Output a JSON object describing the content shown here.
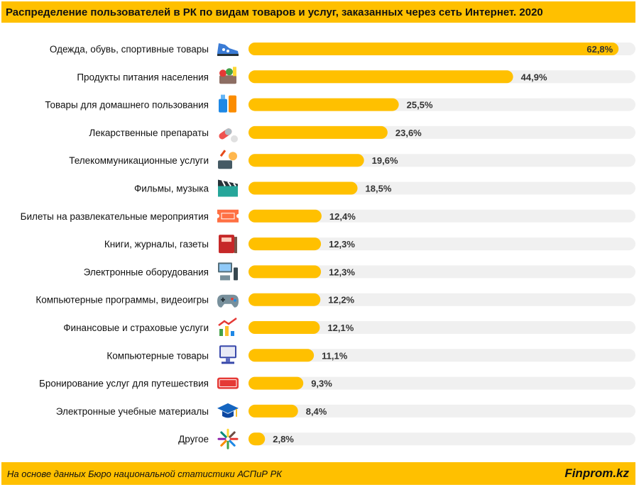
{
  "title": "Распределение пользователей в РК по видам товаров и услуг, заказанных через сеть Интернет. 2020",
  "footer": {
    "source": "На основе данных  Бюро национальной  статистики АСПиР РК",
    "brand": "Finprom.kz"
  },
  "colors": {
    "accent": "#ffc000",
    "track": "#f0f0f0"
  },
  "chart_data": {
    "type": "bar",
    "orientation": "horizontal",
    "xlim": [
      0,
      100
    ],
    "grid": false,
    "categories": [
      "Одежда, обувь, спортивные товары",
      "Продукты питания населения",
      "Товары для домашнего пользования",
      "Лекарственные препараты",
      "Телекоммуникационные услуги",
      "Фильмы, музыка",
      "Билеты на развлекательные мероприятия",
      "Книги,  журналы, газеты",
      "Электронные оборудования",
      "Компьютерные программы, видеоигры",
      "Финансовые и страховые услуги",
      "Компьютерные товары",
      "Бронирование услуг для путешествия",
      "Электронные учебные материалы",
      "Другое"
    ],
    "values": [
      62.8,
      44.9,
      25.5,
      23.6,
      19.6,
      18.5,
      12.4,
      12.3,
      12.3,
      12.2,
      12.1,
      11.1,
      9.3,
      8.4,
      2.8
    ],
    "value_labels": [
      "62,8%",
      "44,9%",
      "25,5%",
      "23,6%",
      "19,6%",
      "18,5%",
      "12,4%",
      "12,3%",
      "12,3%",
      "12,2%",
      "12,1%",
      "11,1%",
      "9,3%",
      "8,4%",
      "2,8%"
    ],
    "icons": [
      "sneaker-icon",
      "groceries-icon",
      "household-goods-icon",
      "pills-icon",
      "telecom-icon",
      "film-clapper-icon",
      "ticket-icon",
      "books-icon",
      "electronics-icon",
      "gamepad-icon",
      "finance-chart-icon",
      "computer-icon",
      "reserved-sign-icon",
      "graduation-cap-icon",
      "arrows-out-icon"
    ]
  }
}
